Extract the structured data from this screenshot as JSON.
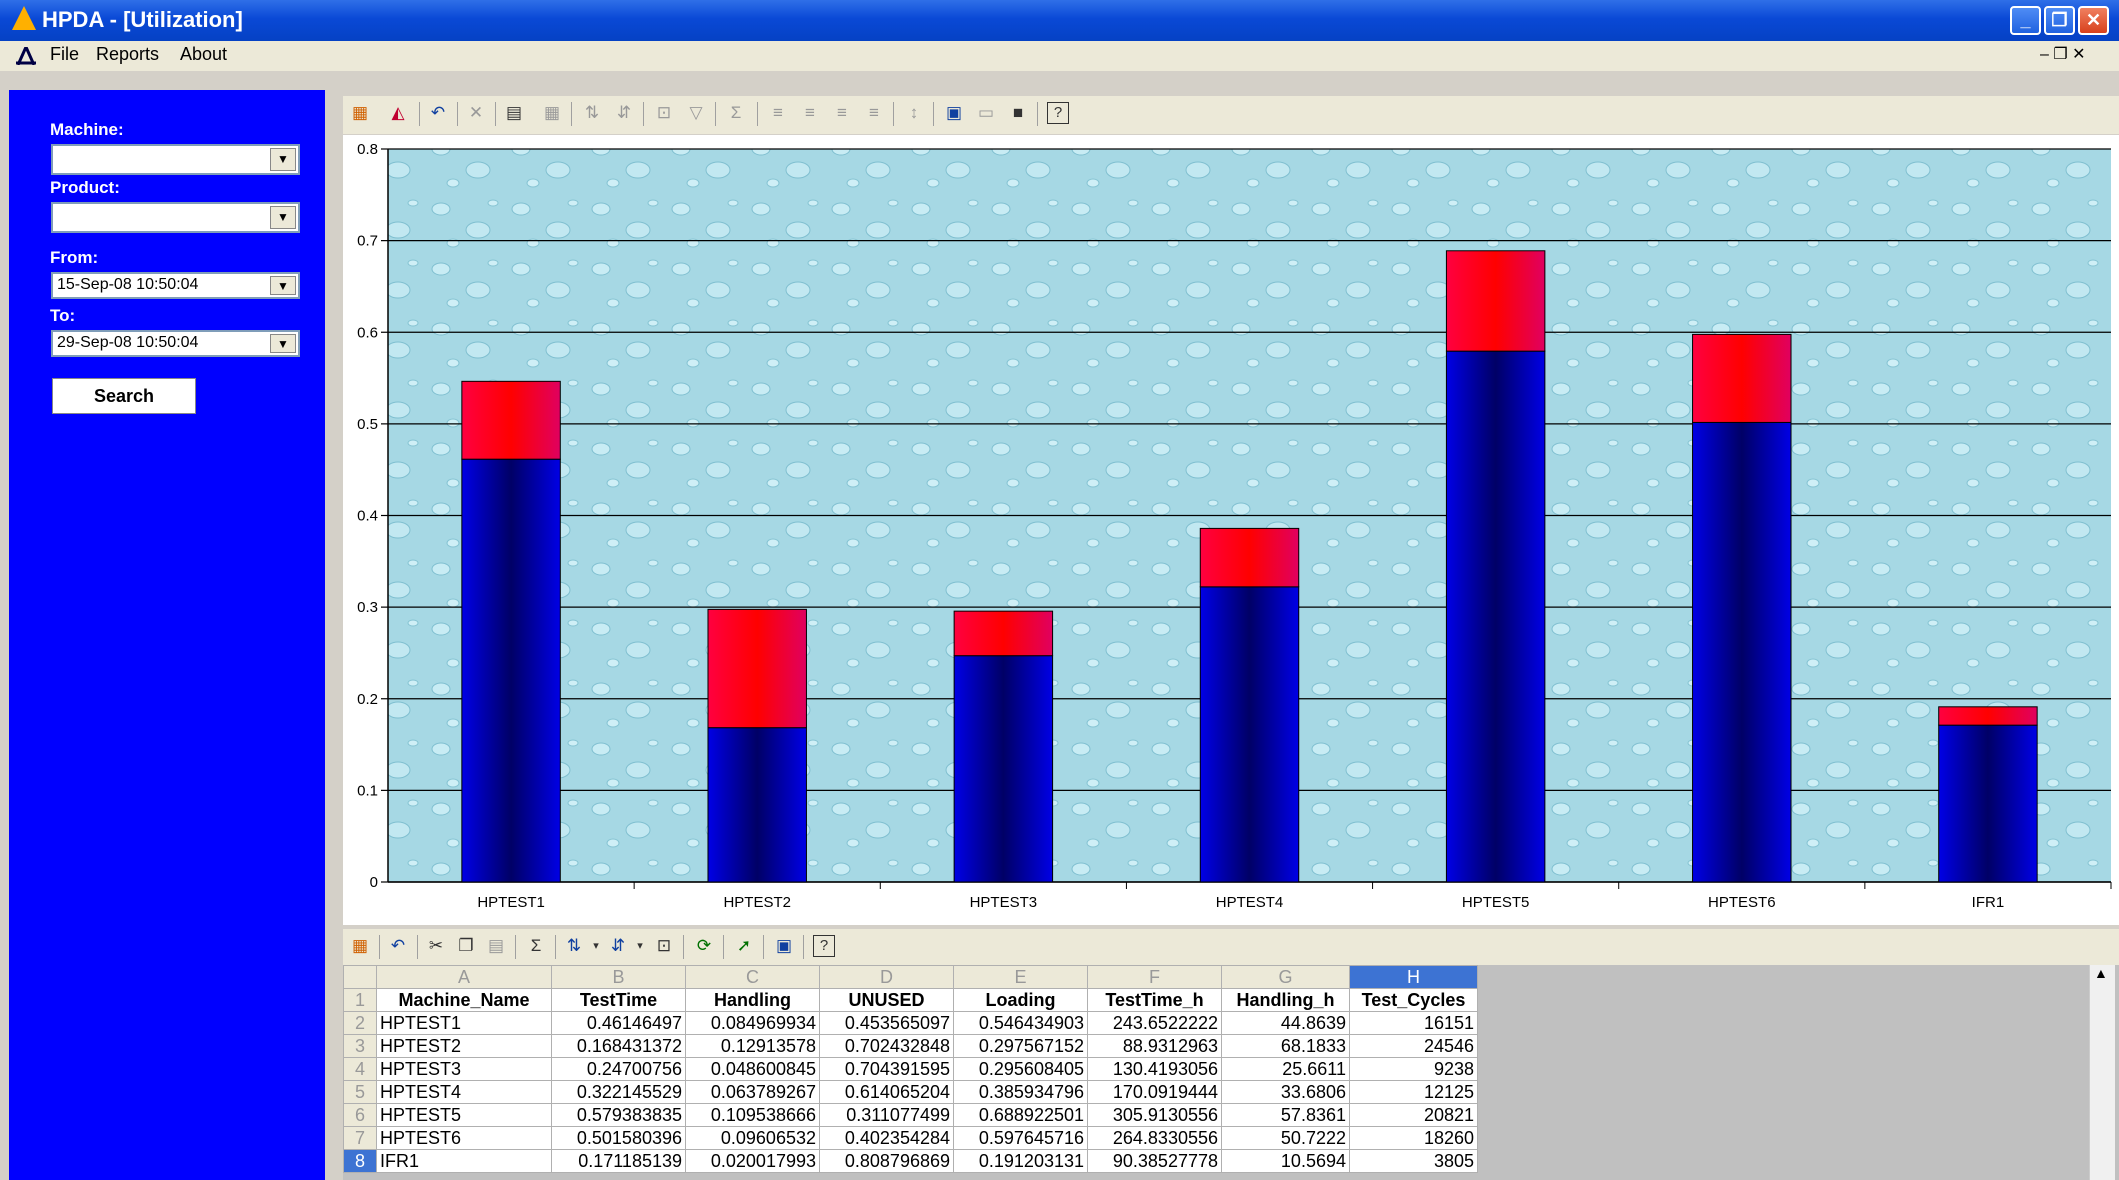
{
  "window": {
    "title": "HPDA - [Utilization]",
    "min_glyph": "_",
    "max_glyph": "❐",
    "close_glyph": "✕",
    "mdi_controls": "– ❐ ✕"
  },
  "menu": {
    "items": [
      "File",
      "Reports",
      "About"
    ]
  },
  "filters": {
    "machine_label": "Machine:",
    "machine_value": "",
    "product_label": "Product:",
    "product_value": "",
    "from_label": "From:",
    "from_value": "15-Sep-08 10:50:04",
    "to_label": "To:",
    "to_value": "29-Sep-08 10:50:04",
    "search_label": "Search"
  },
  "chart_toolbar_icons": [
    "chart-wizard-icon",
    "chart-type-icon",
    "undo-icon",
    "delete-icon",
    "properties-icon",
    "data-table-icon",
    "sort-ascending-icon",
    "sort-descending-icon",
    "autofilter-icon",
    "filter-icon",
    "autosum-icon",
    "sort-icon",
    "export-icon",
    "print-icon",
    "help-icon"
  ],
  "sheet_toolbar_icons": [
    "chart-wizard-icon",
    "undo-icon",
    "cut-icon",
    "copy-icon",
    "paste-icon",
    "autosum-icon",
    "sort-ascending-icon",
    "sort-descending-icon",
    "autofilter-icon",
    "refresh-icon",
    "export-icon",
    "print-icon",
    "help-icon"
  ],
  "colors": {
    "test_time": "#0000cc",
    "handling": "#ee0033",
    "panel": "#0000ff",
    "chart_bg": "#a9dbe6"
  },
  "chart_data": {
    "type": "bar",
    "stacked": true,
    "categories": [
      "HPTEST1",
      "HPTEST2",
      "HPTEST3",
      "HPTEST4",
      "HPTEST5",
      "HPTEST6",
      "IFR1"
    ],
    "series": [
      {
        "values": [
          0.46146497,
          0.168431372,
          0.24700756,
          0.322145529,
          0.579383835,
          0.501580396,
          0.171185139
        ]
      },
      {
        "values": [
          0.084969934,
          0.12913578,
          0.048600845,
          0.063789267,
          0.109538666,
          0.09606532,
          0.020017993
        ]
      }
    ],
    "ylim": [
      0,
      0.8
    ],
    "yticks": [
      "0",
      "0.1",
      "0.2",
      "0.3",
      "0.4",
      "0.5",
      "0.6",
      "0.7",
      "0.8"
    ],
    "grid": true
  },
  "sheet": {
    "col_letters": [
      "A",
      "B",
      "C",
      "D",
      "E",
      "F",
      "G",
      "H"
    ],
    "headers": [
      "Machine_Name",
      "TestTime",
      "Handling",
      "UNUSED",
      "Loading",
      "TestTime_h",
      "Handling_h",
      "Test_Cycles"
    ],
    "rows": [
      [
        "HPTEST1",
        "0.46146497",
        "0.084969934",
        "0.453565097",
        "0.546434903",
        "243.6522222",
        "44.8639",
        "16151"
      ],
      [
        "HPTEST2",
        "0.168431372",
        "0.12913578",
        "0.702432848",
        "0.297567152",
        "88.9312963",
        "68.1833",
        "24546"
      ],
      [
        "HPTEST3",
        "0.24700756",
        "0.048600845",
        "0.704391595",
        "0.295608405",
        "130.4193056",
        "25.6611",
        "9238"
      ],
      [
        "HPTEST4",
        "0.322145529",
        "0.063789267",
        "0.614065204",
        "0.385934796",
        "170.0919444",
        "33.6806",
        "12125"
      ],
      [
        "HPTEST5",
        "0.579383835",
        "0.109538666",
        "0.311077499",
        "0.688922501",
        "305.9130556",
        "57.8361",
        "20821"
      ],
      [
        "HPTEST6",
        "0.501580396",
        "0.09606532",
        "0.402354284",
        "0.597645716",
        "264.8330556",
        "50.7222",
        "18260"
      ],
      [
        "IFR1",
        "0.171185139",
        "0.020017993",
        "0.808796869",
        "0.191203131",
        "90.38527778",
        "10.5694",
        "3805"
      ]
    ]
  }
}
